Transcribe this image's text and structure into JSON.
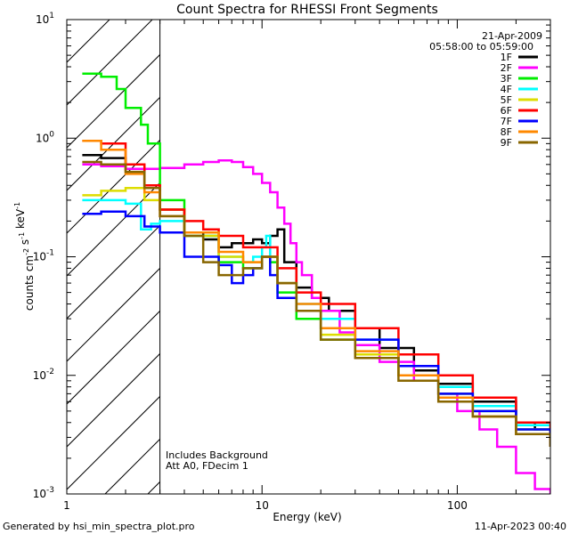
{
  "footer": {
    "generated_by": "Generated by hsi_min_spectra_plot.pro",
    "generated_on": "11-Apr-2023 00:40"
  },
  "annotations": {
    "background_note": "Includes Background",
    "attenuator_note": "Att A0, FDecim 1",
    "shaded_region_upper_kev": 3
  },
  "chart_data": {
    "type": "line",
    "title": "Count Spectra for RHESSI Front Segments",
    "xlabel": "Energy (keV)",
    "ylabel": "counts cm^-2 s^-1 keV^-1",
    "xscale": "log",
    "yscale": "log",
    "xlim": [
      1,
      300
    ],
    "ylim": [
      0.001,
      10
    ],
    "x_tick_labels": [
      "1",
      "10",
      "100"
    ],
    "x_tick_values": [
      1,
      10,
      100
    ],
    "y_tick_labels": [
      "10^-3",
      "10^-2",
      "10^-1",
      "10^0",
      "10^1"
    ],
    "y_tick_values": [
      0.001,
      0.01,
      0.1,
      1,
      10
    ],
    "date": "21-Apr-2009",
    "time_range": "05:58:00 to 05:59:00",
    "legend_position": "top-right",
    "series": [
      {
        "name": "1F",
        "color": "#000000",
        "x": [
          1.2,
          1.5,
          2.0,
          2.5,
          3.0,
          4.0,
          5.0,
          6.0,
          7.0,
          8.0,
          9.0,
          10.0,
          11.0,
          12.0,
          13.0,
          15.0,
          18.0,
          22.0,
          30.0,
          40.0,
          60.0,
          80.0,
          120.0,
          200.0,
          250.0,
          300.0
        ],
        "y": [
          0.72,
          0.68,
          0.55,
          0.4,
          0.25,
          0.16,
          0.14,
          0.12,
          0.13,
          0.13,
          0.14,
          0.13,
          0.15,
          0.17,
          0.09,
          0.055,
          0.045,
          0.035,
          0.025,
          0.017,
          0.011,
          0.0085,
          0.006,
          0.004,
          0.0035,
          0.003
        ]
      },
      {
        "name": "2F",
        "color": "#ff00ff",
        "x": [
          1.2,
          1.5,
          2.0,
          2.5,
          3.0,
          4.0,
          5.0,
          6.0,
          7.0,
          8.0,
          9.0,
          10.0,
          11.0,
          12.0,
          13.0,
          14.0,
          15.0,
          16.0,
          18.0,
          20.0,
          25.0,
          30.0,
          40.0,
          60.0,
          80.0,
          100.0,
          130.0,
          160.0,
          200.0,
          250.0,
          300.0
        ],
        "y": [
          0.6,
          0.58,
          0.55,
          0.55,
          0.56,
          0.6,
          0.63,
          0.65,
          0.63,
          0.57,
          0.5,
          0.42,
          0.35,
          0.26,
          0.19,
          0.13,
          0.09,
          0.07,
          0.045,
          0.035,
          0.023,
          0.018,
          0.013,
          0.009,
          0.007,
          0.005,
          0.0035,
          0.0025,
          0.0015,
          0.0011,
          0.001
        ]
      },
      {
        "name": "3F",
        "color": "#00ee00",
        "x": [
          1.2,
          1.5,
          1.8,
          2.0,
          2.4,
          2.6,
          3.0,
          4.0,
          6.0,
          8.0,
          10.0,
          11.0,
          12.0,
          15.0,
          20.0,
          30.0,
          50.0,
          80.0,
          120.0,
          200.0,
          300.0
        ],
        "y": [
          3.5,
          3.3,
          2.6,
          1.8,
          1.3,
          0.9,
          0.3,
          0.15,
          0.09,
          0.08,
          0.1,
          0.09,
          0.05,
          0.03,
          0.02,
          0.015,
          0.01,
          0.007,
          0.005,
          0.0035,
          0.0025
        ]
      },
      {
        "name": "4F",
        "color": "#00ffff",
        "x": [
          1.2,
          1.5,
          2.0,
          2.4,
          2.7,
          3.0,
          4.0,
          6.0,
          8.0,
          9.0,
          10.0,
          10.5,
          11.0,
          12.0,
          15.0,
          20.0,
          30.0,
          50.0,
          80.0,
          120.0,
          200.0,
          300.0
        ],
        "y": [
          0.3,
          0.3,
          0.28,
          0.17,
          0.19,
          0.2,
          0.15,
          0.1,
          0.09,
          0.1,
          0.12,
          0.15,
          0.1,
          0.06,
          0.04,
          0.03,
          0.02,
          0.012,
          0.008,
          0.0055,
          0.0038,
          0.003
        ]
      },
      {
        "name": "5F",
        "color": "#dddd00",
        "x": [
          1.2,
          1.5,
          2.0,
          2.5,
          3.0,
          4.0,
          6.0,
          8.0,
          10.0,
          12.0,
          15.0,
          20.0,
          30.0,
          50.0,
          80.0,
          120.0,
          200.0,
          300.0
        ],
        "y": [
          0.33,
          0.36,
          0.38,
          0.3,
          0.25,
          0.15,
          0.1,
          0.09,
          0.1,
          0.06,
          0.035,
          0.022,
          0.015,
          0.01,
          0.007,
          0.0045,
          0.0035,
          0.0025
        ]
      },
      {
        "name": "6F",
        "color": "#ff0000",
        "x": [
          1.2,
          1.5,
          2.0,
          2.5,
          3.0,
          4.0,
          5.0,
          6.0,
          8.0,
          10.0,
          12.0,
          15.0,
          20.0,
          30.0,
          50.0,
          80.0,
          120.0,
          200.0,
          300.0
        ],
        "y": [
          0.95,
          0.9,
          0.6,
          0.4,
          0.25,
          0.2,
          0.17,
          0.15,
          0.12,
          0.12,
          0.08,
          0.05,
          0.04,
          0.025,
          0.015,
          0.01,
          0.0065,
          0.004,
          0.003
        ]
      },
      {
        "name": "7F",
        "color": "#0000ff",
        "x": [
          1.2,
          1.5,
          2.0,
          2.5,
          3.0,
          4.0,
          6.0,
          7.0,
          8.0,
          9.0,
          10.0,
          11.0,
          12.0,
          15.0,
          20.0,
          30.0,
          50.0,
          80.0,
          120.0,
          200.0,
          300.0
        ],
        "y": [
          0.23,
          0.24,
          0.22,
          0.18,
          0.16,
          0.1,
          0.085,
          0.06,
          0.07,
          0.08,
          0.1,
          0.07,
          0.045,
          0.035,
          0.025,
          0.02,
          0.012,
          0.007,
          0.005,
          0.0035,
          0.0025
        ]
      },
      {
        "name": "8F",
        "color": "#ff8800",
        "x": [
          1.2,
          1.5,
          2.0,
          2.5,
          3.0,
          4.0,
          6.0,
          8.0,
          10.0,
          12.0,
          15.0,
          20.0,
          30.0,
          50.0,
          80.0,
          120.0,
          200.0,
          300.0
        ],
        "y": [
          0.95,
          0.8,
          0.5,
          0.35,
          0.22,
          0.16,
          0.11,
          0.09,
          0.1,
          0.06,
          0.04,
          0.025,
          0.016,
          0.01,
          0.0065,
          0.0045,
          0.0032,
          0.0025
        ]
      },
      {
        "name": "9F",
        "color": "#886600",
        "x": [
          1.2,
          1.5,
          2.0,
          2.5,
          3.0,
          4.0,
          5.0,
          6.0,
          8.0,
          10.0,
          12.0,
          15.0,
          20.0,
          30.0,
          50.0,
          80.0,
          120.0,
          200.0,
          300.0
        ],
        "y": [
          0.63,
          0.6,
          0.52,
          0.38,
          0.22,
          0.15,
          0.09,
          0.07,
          0.08,
          0.1,
          0.06,
          0.035,
          0.02,
          0.014,
          0.009,
          0.006,
          0.0045,
          0.0032,
          0.0025
        ]
      }
    ]
  }
}
